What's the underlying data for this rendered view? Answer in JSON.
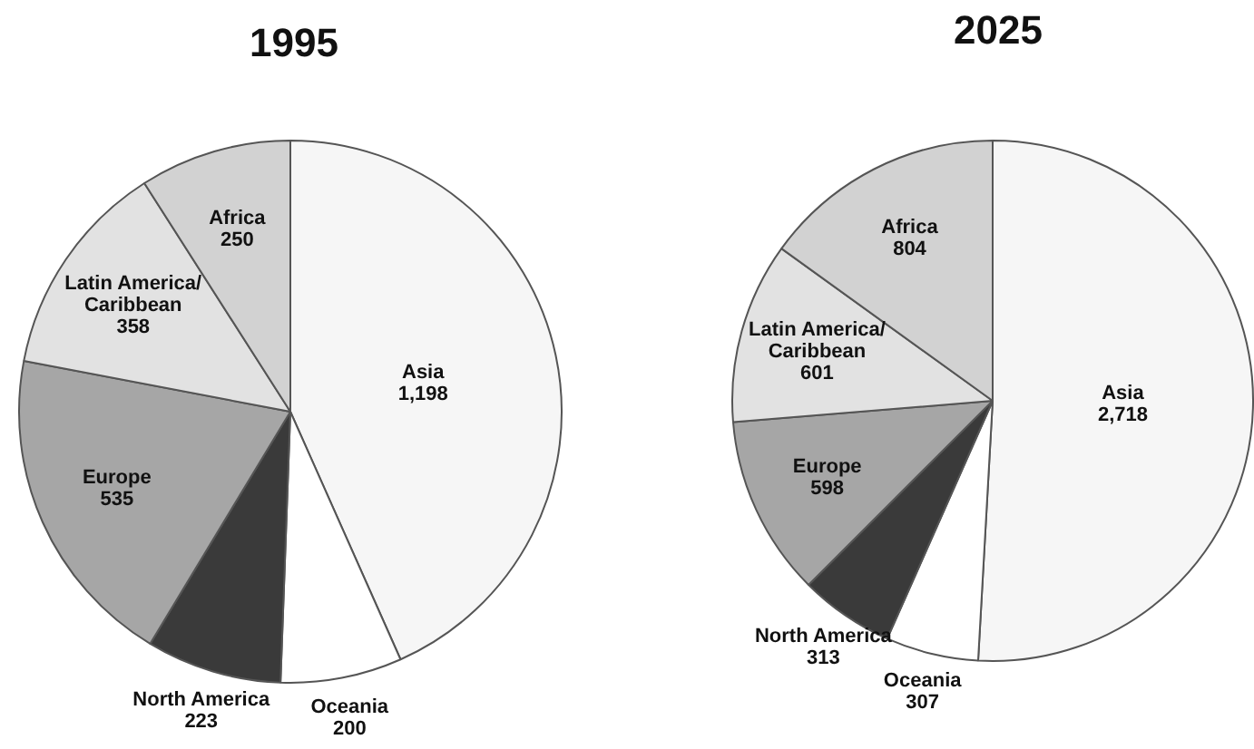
{
  "chart_data": [
    {
      "type": "pie",
      "title": "1995",
      "categories": [
        "Asia",
        "Oceania",
        "North America",
        "Europe",
        "Latin America/Caribbean",
        "Africa"
      ],
      "values": [
        1198,
        200,
        223,
        535,
        358,
        250
      ],
      "value_labels": [
        "1,198",
        "200",
        "223",
        "535",
        "358",
        "250"
      ],
      "colors": [
        "#f6f6f6",
        "#ffffff",
        "#3a3a3a",
        "#a6a6a6",
        "#e2e2e2",
        "#d2d2d2"
      ]
    },
    {
      "type": "pie",
      "title": "2025",
      "categories": [
        "Asia",
        "Oceania",
        "North America",
        "Europe",
        "Latin America/Caribbean",
        "Africa"
      ],
      "values": [
        2718,
        307,
        313,
        598,
        601,
        804
      ],
      "value_labels": [
        "2,718",
        "307",
        "313",
        "598",
        "601",
        "804"
      ],
      "colors": [
        "#f6f6f6",
        "#ffffff",
        "#3a3a3a",
        "#a6a6a6",
        "#e2e2e2",
        "#d2d2d2"
      ]
    }
  ]
}
